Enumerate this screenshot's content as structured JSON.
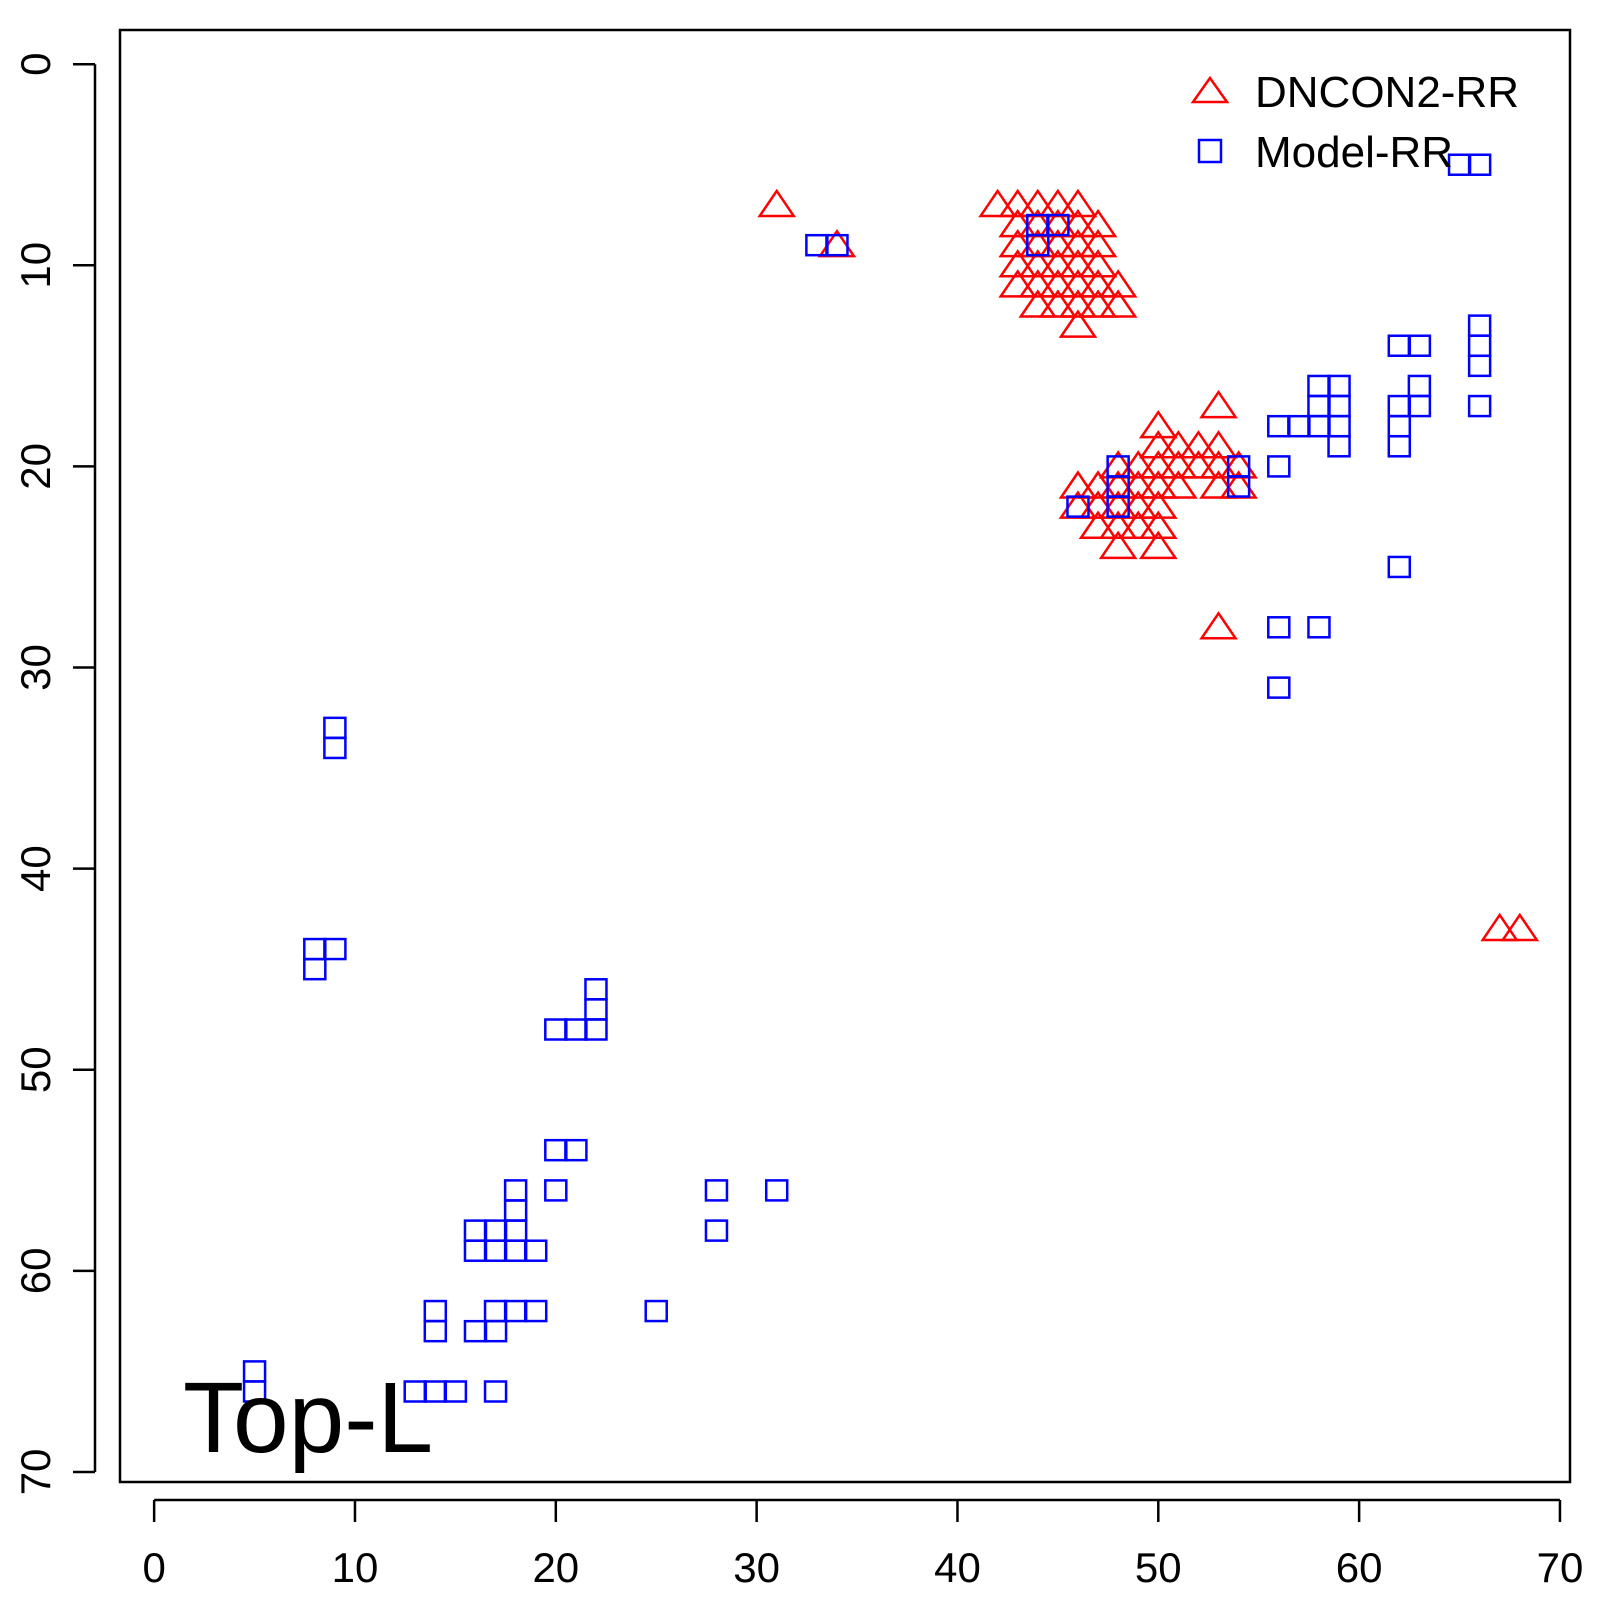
{
  "chart_data": {
    "type": "scatter",
    "title": "",
    "xlabel": "",
    "ylabel": "",
    "xlim": [
      -1.7,
      70.5
    ],
    "ylim": [
      -1.7,
      70.5
    ],
    "y_reversed": true,
    "x_ticks": [
      "0",
      "10",
      "20",
      "30",
      "40",
      "50",
      "60",
      "70"
    ],
    "y_ticks": [
      "0",
      "10",
      "20",
      "30",
      "40",
      "50",
      "60",
      "70"
    ],
    "annotation": "Top-L",
    "legend_position": "top-right",
    "series": [
      {
        "name": "DNCON2-RR",
        "marker": "triangle",
        "color": "#ff0000",
        "points": [
          [
            31,
            7
          ],
          [
            34,
            9
          ],
          [
            42,
            7
          ],
          [
            43,
            7
          ],
          [
            44,
            7
          ],
          [
            45,
            7
          ],
          [
            46,
            7
          ],
          [
            43,
            8
          ],
          [
            44,
            8
          ],
          [
            45,
            8
          ],
          [
            46,
            8
          ],
          [
            47,
            8
          ],
          [
            43,
            9
          ],
          [
            44,
            9
          ],
          [
            45,
            9
          ],
          [
            46,
            9
          ],
          [
            47,
            9
          ],
          [
            43,
            10
          ],
          [
            44,
            10
          ],
          [
            45,
            10
          ],
          [
            46,
            10
          ],
          [
            47,
            10
          ],
          [
            43,
            11
          ],
          [
            44,
            11
          ],
          [
            45,
            11
          ],
          [
            46,
            11
          ],
          [
            47,
            11
          ],
          [
            48,
            11
          ],
          [
            44,
            12
          ],
          [
            45,
            12
          ],
          [
            46,
            12
          ],
          [
            47,
            12
          ],
          [
            48,
            12
          ],
          [
            46,
            13
          ],
          [
            53,
            17
          ],
          [
            50,
            18
          ],
          [
            50,
            19
          ],
          [
            51,
            19
          ],
          [
            52,
            19
          ],
          [
            53,
            19
          ],
          [
            48,
            20
          ],
          [
            49,
            20
          ],
          [
            50,
            20
          ],
          [
            51,
            20
          ],
          [
            52,
            20
          ],
          [
            53,
            20
          ],
          [
            54,
            20
          ],
          [
            46,
            21
          ],
          [
            47,
            21
          ],
          [
            48,
            21
          ],
          [
            49,
            21
          ],
          [
            50,
            21
          ],
          [
            51,
            21
          ],
          [
            53,
            21
          ],
          [
            54,
            21
          ],
          [
            46,
            22
          ],
          [
            47,
            22
          ],
          [
            48,
            22
          ],
          [
            49,
            22
          ],
          [
            50,
            22
          ],
          [
            47,
            23
          ],
          [
            48,
            23
          ],
          [
            49,
            23
          ],
          [
            50,
            23
          ],
          [
            48,
            24
          ],
          [
            50,
            24
          ],
          [
            53,
            28
          ],
          [
            67,
            43
          ],
          [
            68,
            43
          ]
        ]
      },
      {
        "name": "Model-RR",
        "marker": "square",
        "color": "#0000ff",
        "points": [
          [
            65,
            5
          ],
          [
            66,
            5
          ],
          [
            44,
            8
          ],
          [
            45,
            8
          ],
          [
            44,
            9
          ],
          [
            33,
            9
          ],
          [
            34,
            9
          ],
          [
            66,
            13
          ],
          [
            62,
            14
          ],
          [
            63,
            14
          ],
          [
            66,
            14
          ],
          [
            66,
            15
          ],
          [
            58,
            16
          ],
          [
            59,
            16
          ],
          [
            63,
            16
          ],
          [
            58,
            17
          ],
          [
            59,
            17
          ],
          [
            62,
            17
          ],
          [
            63,
            17
          ],
          [
            66,
            17
          ],
          [
            56,
            18
          ],
          [
            57,
            18
          ],
          [
            58,
            18
          ],
          [
            59,
            18
          ],
          [
            62,
            18
          ],
          [
            59,
            19
          ],
          [
            62,
            19
          ],
          [
            48,
            20
          ],
          [
            54,
            20
          ],
          [
            56,
            20
          ],
          [
            48,
            21
          ],
          [
            54,
            21
          ],
          [
            46,
            22
          ],
          [
            48,
            22
          ],
          [
            62,
            25
          ],
          [
            56,
            28
          ],
          [
            58,
            28
          ],
          [
            56,
            31
          ],
          [
            9,
            33
          ],
          [
            9,
            34
          ],
          [
            8,
            44
          ],
          [
            9,
            44
          ],
          [
            8,
            45
          ],
          [
            22,
            46
          ],
          [
            22,
            47
          ],
          [
            20,
            48
          ],
          [
            21,
            48
          ],
          [
            22,
            48
          ],
          [
            20,
            54
          ],
          [
            21,
            54
          ],
          [
            18,
            56
          ],
          [
            20,
            56
          ],
          [
            28,
            56
          ],
          [
            31,
            56
          ],
          [
            18,
            57
          ],
          [
            16,
            58
          ],
          [
            17,
            58
          ],
          [
            18,
            58
          ],
          [
            28,
            58
          ],
          [
            16,
            59
          ],
          [
            17,
            59
          ],
          [
            18,
            59
          ],
          [
            19,
            59
          ],
          [
            14,
            62
          ],
          [
            17,
            62
          ],
          [
            18,
            62
          ],
          [
            19,
            62
          ],
          [
            25,
            62
          ],
          [
            14,
            63
          ],
          [
            16,
            63
          ],
          [
            17,
            63
          ],
          [
            5,
            65
          ],
          [
            5,
            66
          ],
          [
            13,
            66
          ],
          [
            14,
            66
          ],
          [
            15,
            66
          ],
          [
            17,
            66
          ]
        ]
      }
    ]
  }
}
